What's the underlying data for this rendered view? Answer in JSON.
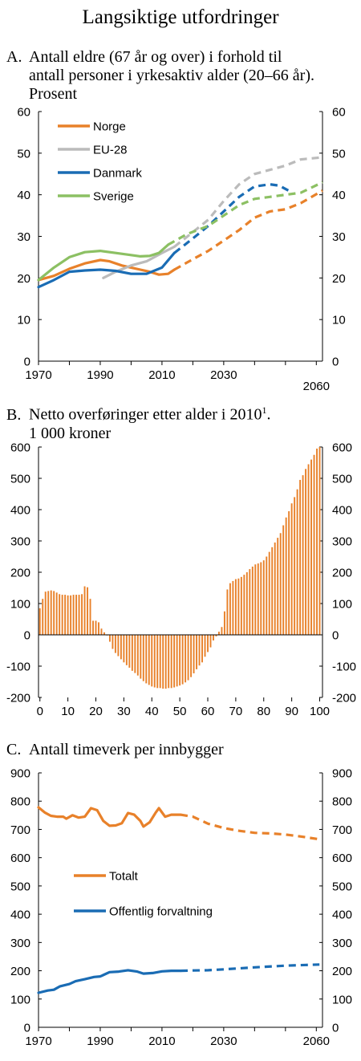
{
  "page_title": "Langsiktige utfordringer",
  "colors": {
    "orange": "#e8812a",
    "grey": "#bbbbbb",
    "blue": "#1a6cb4",
    "green": "#8cc063",
    "bar": "#e8812a"
  },
  "chart_data": [
    {
      "panel": "A.",
      "title_lines": [
        "Antall eldre (67 år og over) i forhold til",
        "antall personer i yrkesaktiv alder (20–66 år).",
        "Prosent"
      ],
      "type": "line",
      "xlim": [
        1970,
        2062
      ],
      "ylim": [
        0,
        60
      ],
      "x_ticks": [
        1970,
        1990,
        2010,
        2030,
        2060
      ],
      "y_ticks": [
        0,
        10,
        20,
        30,
        40,
        50,
        60
      ],
      "legend_position": "top-left",
      "series": [
        {
          "name": "Norge",
          "color_key": "orange",
          "solid": [
            [
              1970,
              19.5
            ],
            [
              1975,
              20.5
            ],
            [
              1980,
              22.2
            ],
            [
              1985,
              23.5
            ],
            [
              1990,
              24.3
            ],
            [
              1993,
              24
            ],
            [
              1997,
              23
            ],
            [
              2000,
              22.5
            ],
            [
              2003,
              22
            ],
            [
              2006,
              21.5
            ],
            [
              2009,
              20.8
            ],
            [
              2012,
              21
            ],
            [
              2014,
              22
            ]
          ],
          "dashed": [
            [
              2014,
              22
            ],
            [
              2020,
              24.5
            ],
            [
              2025,
              26.5
            ],
            [
              2030,
              29
            ],
            [
              2035,
              31.5
            ],
            [
              2040,
              34.5
            ],
            [
              2045,
              36
            ],
            [
              2050,
              36.5
            ],
            [
              2055,
              38
            ],
            [
              2062,
              41
            ]
          ]
        },
        {
          "name": "EU-28",
          "color_key": "grey",
          "solid": [
            [
              1991,
              20
            ],
            [
              1995,
              21.5
            ],
            [
              2000,
              23
            ],
            [
              2005,
              24
            ],
            [
              2010,
              26
            ],
            [
              2014,
              27.5
            ]
          ],
          "dashed": [
            [
              2014,
              27.5
            ],
            [
              2020,
              31
            ],
            [
              2025,
              34
            ],
            [
              2030,
              38.5
            ],
            [
              2035,
              42.5
            ],
            [
              2040,
              45
            ],
            [
              2045,
              46
            ],
            [
              2050,
              47
            ],
            [
              2055,
              48.5
            ],
            [
              2062,
              49
            ]
          ]
        },
        {
          "name": "Danmark",
          "color_key": "blue",
          "solid": [
            [
              1970,
              17.8
            ],
            [
              1975,
              19.5
            ],
            [
              1980,
              21.5
            ],
            [
              1985,
              21.8
            ],
            [
              1990,
              22
            ],
            [
              1995,
              21.7
            ],
            [
              2000,
              21
            ],
            [
              2005,
              21
            ],
            [
              2010,
              22.5
            ],
            [
              2014,
              26
            ]
          ],
          "dashed": [
            [
              2014,
              26
            ],
            [
              2020,
              29.5
            ],
            [
              2025,
              32.5
            ],
            [
              2030,
              36
            ],
            [
              2035,
              39.5
            ],
            [
              2040,
              42
            ],
            [
              2045,
              42.5
            ],
            [
              2048,
              42.2
            ],
            [
              2051,
              41
            ]
          ]
        },
        {
          "name": "Sverige",
          "color_key": "green",
          "solid": [
            [
              1970,
              19.5
            ],
            [
              1975,
              22.5
            ],
            [
              1980,
              25
            ],
            [
              1985,
              26.2
            ],
            [
              1990,
              26.5
            ],
            [
              1995,
              26
            ],
            [
              2000,
              25.5
            ],
            [
              2003,
              25.2
            ],
            [
              2006,
              25.3
            ],
            [
              2009,
              26
            ],
            [
              2012,
              28
            ]
          ],
          "dashed": [
            [
              2012,
              28
            ],
            [
              2018,
              30.5
            ],
            [
              2025,
              32.5
            ],
            [
              2030,
              35
            ],
            [
              2035,
              37.5
            ],
            [
              2040,
              39
            ],
            [
              2045,
              39.5
            ],
            [
              2050,
              40
            ],
            [
              2055,
              40.5
            ],
            [
              2062,
              43
            ]
          ]
        }
      ]
    },
    {
      "panel": "B.",
      "title_lines": [
        "Netto overføringer etter alder i 2010",
        "1 000 kroner"
      ],
      "title_sup": "1",
      "type": "bar",
      "xlim": [
        -0.5,
        101
      ],
      "ylim": [
        -200,
        600
      ],
      "x_ticks": [
        0,
        10,
        20,
        30,
        40,
        50,
        60,
        70,
        80,
        90,
        100
      ],
      "y_ticks": [
        -200,
        -100,
        0,
        100,
        200,
        300,
        400,
        500,
        600
      ],
      "categories": [
        0,
        1,
        2,
        3,
        4,
        5,
        6,
        7,
        8,
        9,
        10,
        11,
        12,
        13,
        14,
        15,
        16,
        17,
        18,
        19,
        20,
        21,
        22,
        23,
        24,
        25,
        26,
        27,
        28,
        29,
        30,
        31,
        32,
        33,
        34,
        35,
        36,
        37,
        38,
        39,
        40,
        41,
        42,
        43,
        44,
        45,
        46,
        47,
        48,
        49,
        50,
        51,
        52,
        53,
        54,
        55,
        56,
        57,
        58,
        59,
        60,
        61,
        62,
        63,
        64,
        65,
        66,
        67,
        68,
        69,
        70,
        71,
        72,
        73,
        74,
        75,
        76,
        77,
        78,
        79,
        80,
        81,
        82,
        83,
        84,
        85,
        86,
        87,
        88,
        89,
        90,
        91,
        92,
        93,
        94,
        95,
        96,
        97,
        98,
        99,
        100
      ],
      "values": [
        85,
        115,
        138,
        140,
        142,
        140,
        135,
        130,
        128,
        128,
        126,
        126,
        128,
        128,
        128,
        130,
        155,
        152,
        115,
        45,
        45,
        40,
        20,
        8,
        -2,
        -22,
        -45,
        -58,
        -68,
        -78,
        -88,
        -97,
        -105,
        -115,
        -122,
        -130,
        -140,
        -148,
        -155,
        -160,
        -165,
        -168,
        -170,
        -170,
        -172,
        -172,
        -170,
        -170,
        -168,
        -165,
        -162,
        -158,
        -152,
        -145,
        -135,
        -123,
        -110,
        -98,
        -88,
        -70,
        -55,
        -40,
        -18,
        -5,
        10,
        25,
        75,
        145,
        165,
        172,
        178,
        180,
        185,
        192,
        200,
        210,
        218,
        225,
        228,
        232,
        238,
        250,
        265,
        280,
        295,
        310,
        325,
        350,
        375,
        395,
        420,
        440,
        465,
        495,
        510,
        530,
        545,
        560,
        575,
        595,
        600
      ],
      "color_key": "bar"
    },
    {
      "panel": "C.",
      "title_lines": [
        "Antall timeverk per innbygger"
      ],
      "type": "line",
      "xlim": [
        1970,
        2062
      ],
      "ylim": [
        0,
        900
      ],
      "x_ticks": [
        1970,
        1990,
        2010,
        2030,
        2060
      ],
      "y_ticks": [
        0,
        100,
        200,
        300,
        400,
        500,
        600,
        700,
        800,
        900
      ],
      "legend_position": "middle-left",
      "series": [
        {
          "name": "Totalt",
          "color_key": "orange",
          "solid": [
            [
              1970,
              778
            ],
            [
              1972,
              760
            ],
            [
              1974,
              748
            ],
            [
              1976,
              745
            ],
            [
              1978,
              745
            ],
            [
              1979,
              738
            ],
            [
              1981,
              750
            ],
            [
              1983,
              742
            ],
            [
              1985,
              745
            ],
            [
              1987,
              775
            ],
            [
              1989,
              768
            ],
            [
              1991,
              730
            ],
            [
              1993,
              713
            ],
            [
              1995,
              714
            ],
            [
              1997,
              722
            ],
            [
              1999,
              758
            ],
            [
              2001,
              752
            ],
            [
              2003,
              730
            ],
            [
              2004,
              710
            ],
            [
              2006,
              725
            ],
            [
              2008,
              760
            ],
            [
              2009,
              775
            ],
            [
              2011,
              745
            ],
            [
              2013,
              752
            ],
            [
              2016,
              752
            ]
          ],
          "dashed": [
            [
              2016,
              752
            ],
            [
              2020,
              745
            ],
            [
              2025,
              720
            ],
            [
              2030,
              705
            ],
            [
              2035,
              695
            ],
            [
              2040,
              688
            ],
            [
              2045,
              686
            ],
            [
              2050,
              682
            ],
            [
              2055,
              675
            ],
            [
              2061,
              665
            ]
          ]
        },
        {
          "name": "Offentlig forvaltning",
          "color_key": "blue",
          "solid": [
            [
              1970,
              122
            ],
            [
              1973,
              130
            ],
            [
              1975,
              133
            ],
            [
              1977,
              145
            ],
            [
              1980,
              153
            ],
            [
              1982,
              163
            ],
            [
              1985,
              170
            ],
            [
              1988,
              178
            ],
            [
              1990,
              180
            ],
            [
              1993,
              195
            ],
            [
              1996,
              197
            ],
            [
              1999,
              202
            ],
            [
              2002,
              197
            ],
            [
              2004,
              190
            ],
            [
              2007,
              192
            ],
            [
              2010,
              198
            ],
            [
              2013,
              200
            ],
            [
              2016,
              200
            ]
          ],
          "dashed": [
            [
              2016,
              200
            ],
            [
              2020,
              201
            ],
            [
              2025,
              202
            ],
            [
              2030,
              205
            ],
            [
              2040,
              212
            ],
            [
              2050,
              218
            ],
            [
              2061,
              222
            ]
          ]
        }
      ]
    }
  ]
}
